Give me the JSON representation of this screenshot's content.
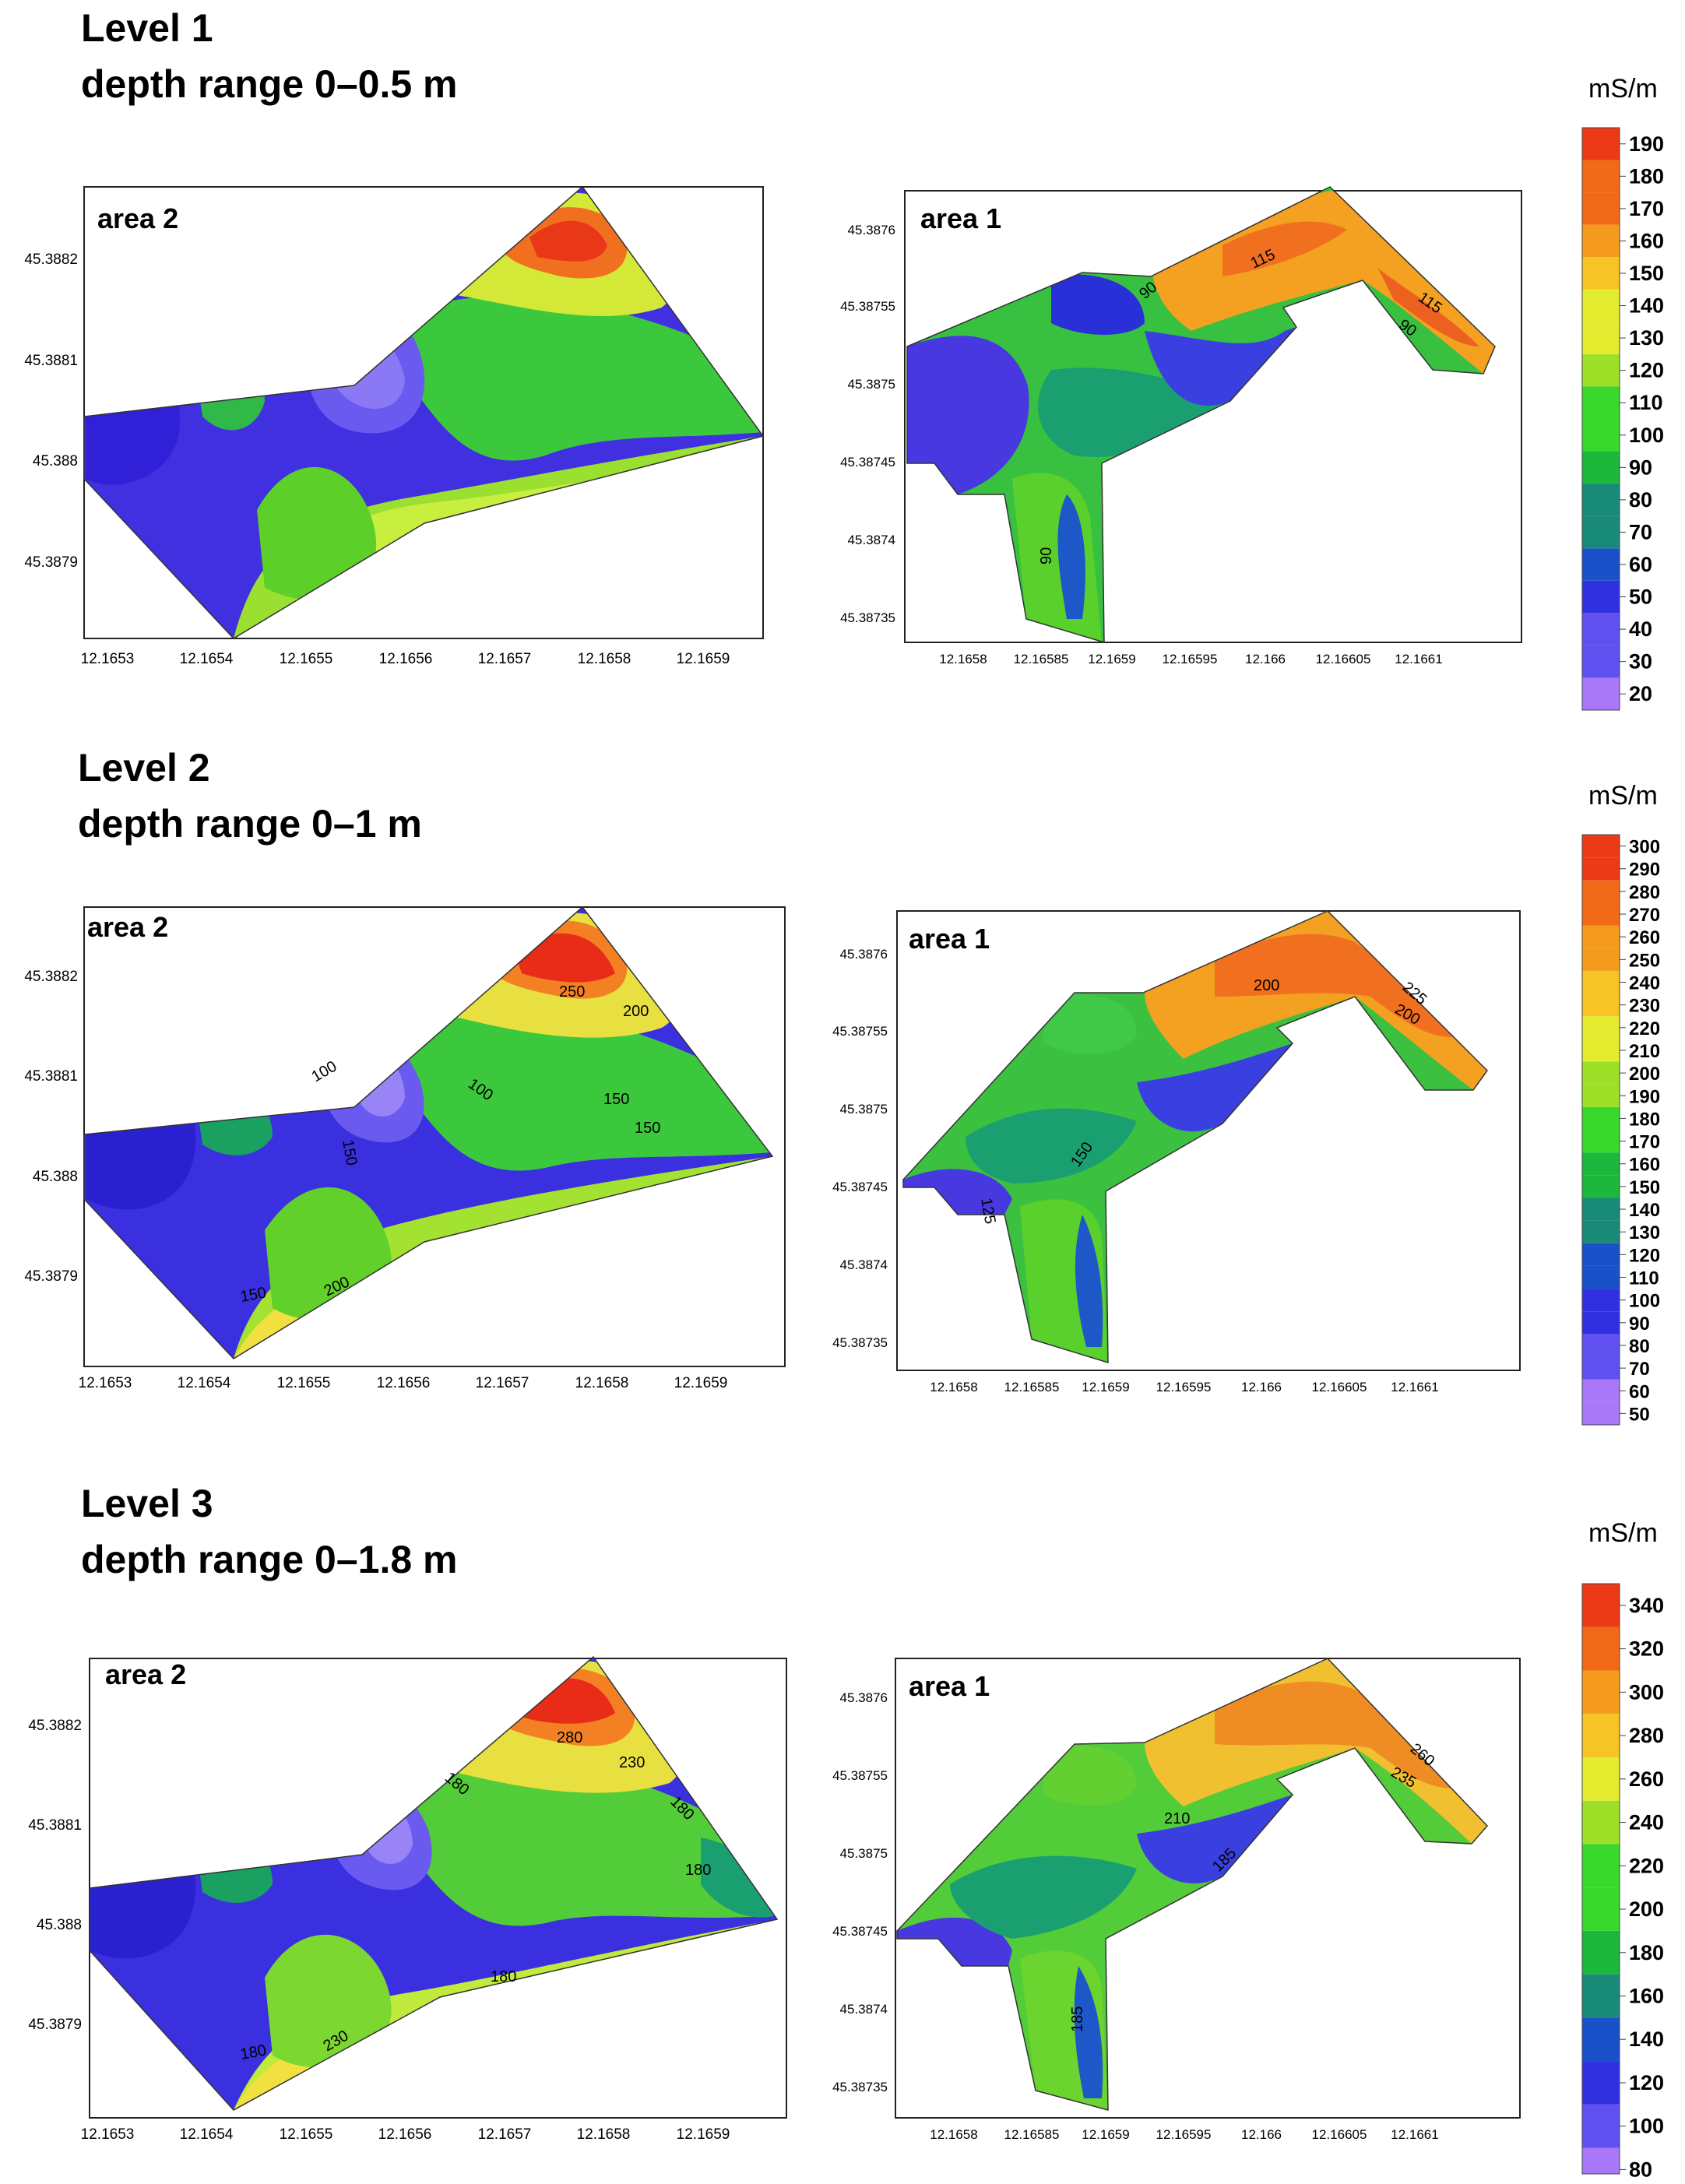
{
  "levels": [
    {
      "title": "Level 1",
      "subtitle": "depth range 0–0.5 m",
      "unit": "mS/m",
      "scale_ticks": [
        20,
        30,
        40,
        50,
        60,
        70,
        80,
        90,
        100,
        110,
        120,
        130,
        140,
        150,
        160,
        170,
        180,
        190
      ],
      "scale_min": 15,
      "scale_max": 195,
      "area2": {
        "label": "area 2",
        "x_ticks": [
          "12.1653",
          "12.1654",
          "12.1655",
          "12.1656",
          "12.1657",
          "12.1658",
          "12.1659"
        ],
        "y_ticks": [
          "45.3882",
          "45.3881",
          "45.388",
          "45.3879"
        ],
        "contour_labels": []
      },
      "area1": {
        "label": "area 1",
        "x_ticks": [
          "12.1658",
          "12.16585",
          "12.1659",
          "12.16595",
          "12.166",
          "12.16605",
          "12.1661"
        ],
        "y_ticks": [
          "45.3876",
          "45.38755",
          "45.3875",
          "45.38745",
          "45.3874",
          "45.38735"
        ],
        "contour_labels": [
          "90",
          "115",
          "115",
          "90",
          "90"
        ]
      }
    },
    {
      "title": "Level 2",
      "subtitle": "depth range 0–1 m",
      "unit": "mS/m",
      "scale_ticks": [
        50,
        60,
        70,
        80,
        90,
        100,
        110,
        120,
        130,
        140,
        150,
        160,
        170,
        180,
        190,
        200,
        210,
        220,
        230,
        240,
        250,
        260,
        270,
        280,
        290,
        300
      ],
      "scale_min": 45,
      "scale_max": 305,
      "area2": {
        "label": "area 2",
        "x_ticks": [
          "12.1653",
          "12.1654",
          "12.1655",
          "12.1656",
          "12.1657",
          "12.1658",
          "12.1659"
        ],
        "y_ticks": [
          "45.3882",
          "45.3881",
          "45.388",
          "45.3879"
        ],
        "contour_labels": [
          "250",
          "200",
          "150",
          "150",
          "150",
          "100",
          "100",
          "150",
          "200"
        ]
      },
      "area1": {
        "label": "area 1",
        "x_ticks": [
          "12.1658",
          "12.16585",
          "12.1659",
          "12.16595",
          "12.166",
          "12.16605",
          "12.1661"
        ],
        "y_ticks": [
          "45.3876",
          "45.38755",
          "45.3875",
          "45.38745",
          "45.3874",
          "45.38735"
        ],
        "contour_labels": [
          "200",
          "225",
          "200",
          "150",
          "125"
        ]
      }
    },
    {
      "title": "Level 3",
      "subtitle": "depth range 0–1.8 m",
      "unit": "mS/m",
      "scale_ticks": [
        80,
        100,
        120,
        140,
        160,
        180,
        200,
        220,
        240,
        260,
        280,
        300,
        320,
        340
      ],
      "scale_min": 78,
      "scale_max": 350,
      "area2": {
        "label": "area 2",
        "x_ticks": [
          "12.1653",
          "12.1654",
          "12.1655",
          "12.1656",
          "12.1657",
          "12.1658",
          "12.1659"
        ],
        "y_ticks": [
          "45.3882",
          "45.3881",
          "45.388",
          "45.3879"
        ],
        "contour_labels": [
          "280",
          "230",
          "180",
          "180",
          "180",
          "180",
          "180",
          "230"
        ]
      },
      "area1": {
        "label": "area 1",
        "x_ticks": [
          "12.1658",
          "12.16585",
          "12.1659",
          "12.16595",
          "12.166",
          "12.16605",
          "12.1661"
        ],
        "y_ticks": [
          "45.3876",
          "45.38755",
          "45.3875",
          "45.38745",
          "45.3874",
          "45.38735"
        ],
        "contour_labels": [
          "260",
          "235",
          "210",
          "185",
          "185"
        ]
      }
    }
  ]
}
